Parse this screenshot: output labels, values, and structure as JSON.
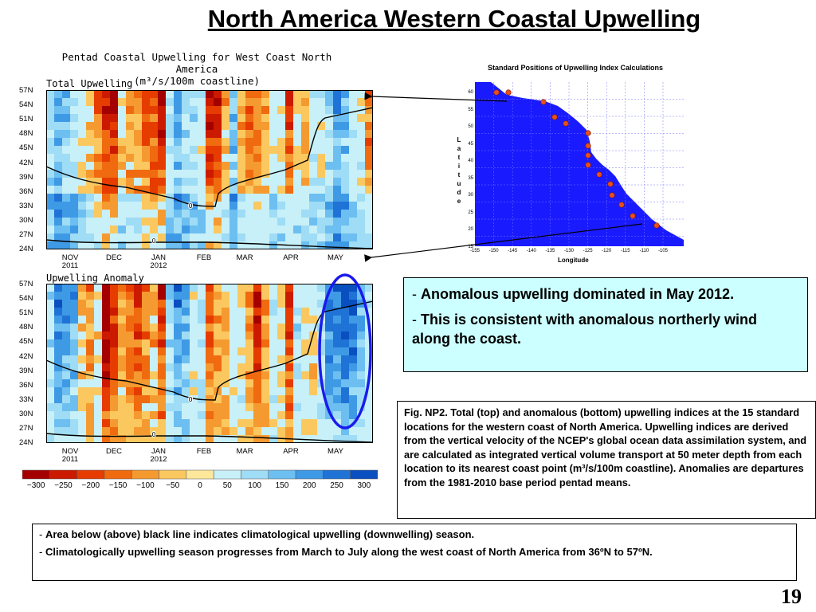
{
  "slide": {
    "title": "North America Western Coastal Upwelling",
    "page_number": "19"
  },
  "chart_title_line1": "Pentad Coastal Upwelling for West Coast North America",
  "chart_title_line2": "(m³/s/100m coastline)",
  "chart_data": [
    {
      "type": "heatmap",
      "panel_label": "Total Upwelling",
      "y_ticks": [
        "57N",
        "54N",
        "51N",
        "48N",
        "45N",
        "42N",
        "39N",
        "36N",
        "33N",
        "30N",
        "27N",
        "24N"
      ],
      "x_ticks": [
        {
          "label": "NOV",
          "sub": "2011"
        },
        {
          "label": "DEC",
          "sub": ""
        },
        {
          "label": "JAN",
          "sub": "2012"
        },
        {
          "label": "FEB",
          "sub": ""
        },
        {
          "label": "MAR",
          "sub": ""
        },
        {
          "label": "APR",
          "sub": ""
        },
        {
          "label": "MAY",
          "sub": ""
        }
      ],
      "contour_label": "0",
      "ylim": [
        24,
        57
      ]
    },
    {
      "type": "heatmap",
      "panel_label": "Upwelling Anomaly",
      "y_ticks": [
        "57N",
        "54N",
        "51N",
        "48N",
        "45N",
        "42N",
        "39N",
        "36N",
        "33N",
        "30N",
        "27N",
        "24N"
      ],
      "x_ticks": [
        {
          "label": "NOV",
          "sub": "2011"
        },
        {
          "label": "DEC",
          "sub": ""
        },
        {
          "label": "JAN",
          "sub": "2012"
        },
        {
          "label": "FEB",
          "sub": ""
        },
        {
          "label": "MAR",
          "sub": ""
        },
        {
          "label": "APR",
          "sub": ""
        },
        {
          "label": "MAY",
          "sub": ""
        }
      ],
      "contour_label": "0",
      "ylim": [
        24,
        57
      ]
    }
  ],
  "colorbar": {
    "ticks": [
      "−300",
      "−250",
      "−200",
      "−150",
      "−100",
      "−50",
      "0",
      "50",
      "100",
      "150",
      "200",
      "250",
      "300"
    ],
    "colors": [
      "#a50000",
      "#cc1a00",
      "#e63c00",
      "#f06a10",
      "#f59a30",
      "#fbc860",
      "#fde79a",
      "#c8f0f8",
      "#9fdcf5",
      "#6cbff0",
      "#3f9ae6",
      "#2073d6",
      "#0a4fc0"
    ]
  },
  "map": {
    "title": "Standard Positions of Upwelling Index Calculations",
    "latitude_label": [
      "L",
      "a",
      "t",
      "i",
      "t",
      "u",
      "d",
      "e"
    ],
    "longitude_label": "Longitude",
    "lat_ticks": [
      "60",
      "55",
      "50",
      "45",
      "40",
      "35",
      "30",
      "25",
      "20",
      "15"
    ],
    "lon_ticks": [
      "-155",
      "-150",
      "-145",
      "-140",
      "-135",
      "-130",
      "-125",
      "-120",
      "-115",
      "-110",
      "-105"
    ],
    "ocean_color": "#1a1aff",
    "land_color": "#ffffff",
    "station_color": "#e8501e"
  },
  "text_box": {
    "dash1": "- ",
    "line1": "Anomalous upwelling dominated in May 2012.",
    "dash2": "- ",
    "line2": "This is consistent with anomalous northerly wind along the coast."
  },
  "caption": "Fig. NP2. Total (top) and anomalous (bottom) upwelling indices at the 15 standard locations for the western coast of North America. Upwelling indices are derived from the vertical velocity of the NCEP's global ocean data assimilation system, and are calculated as integrated vertical volume transport at 50 meter depth from each location to its nearest coast point (m³/s/100m coastline). Anomalies are departures from the 1981-2010 base period pentad means.",
  "bottom_box": {
    "dash1": "- ",
    "line1": "Area below (above) black line indicates climatological upwelling (downwelling) season.",
    "dash2": "- ",
    "line2": "Climatologically upwelling season progresses from March to July along the west coast of North America from 36ºN to 57ºN."
  }
}
